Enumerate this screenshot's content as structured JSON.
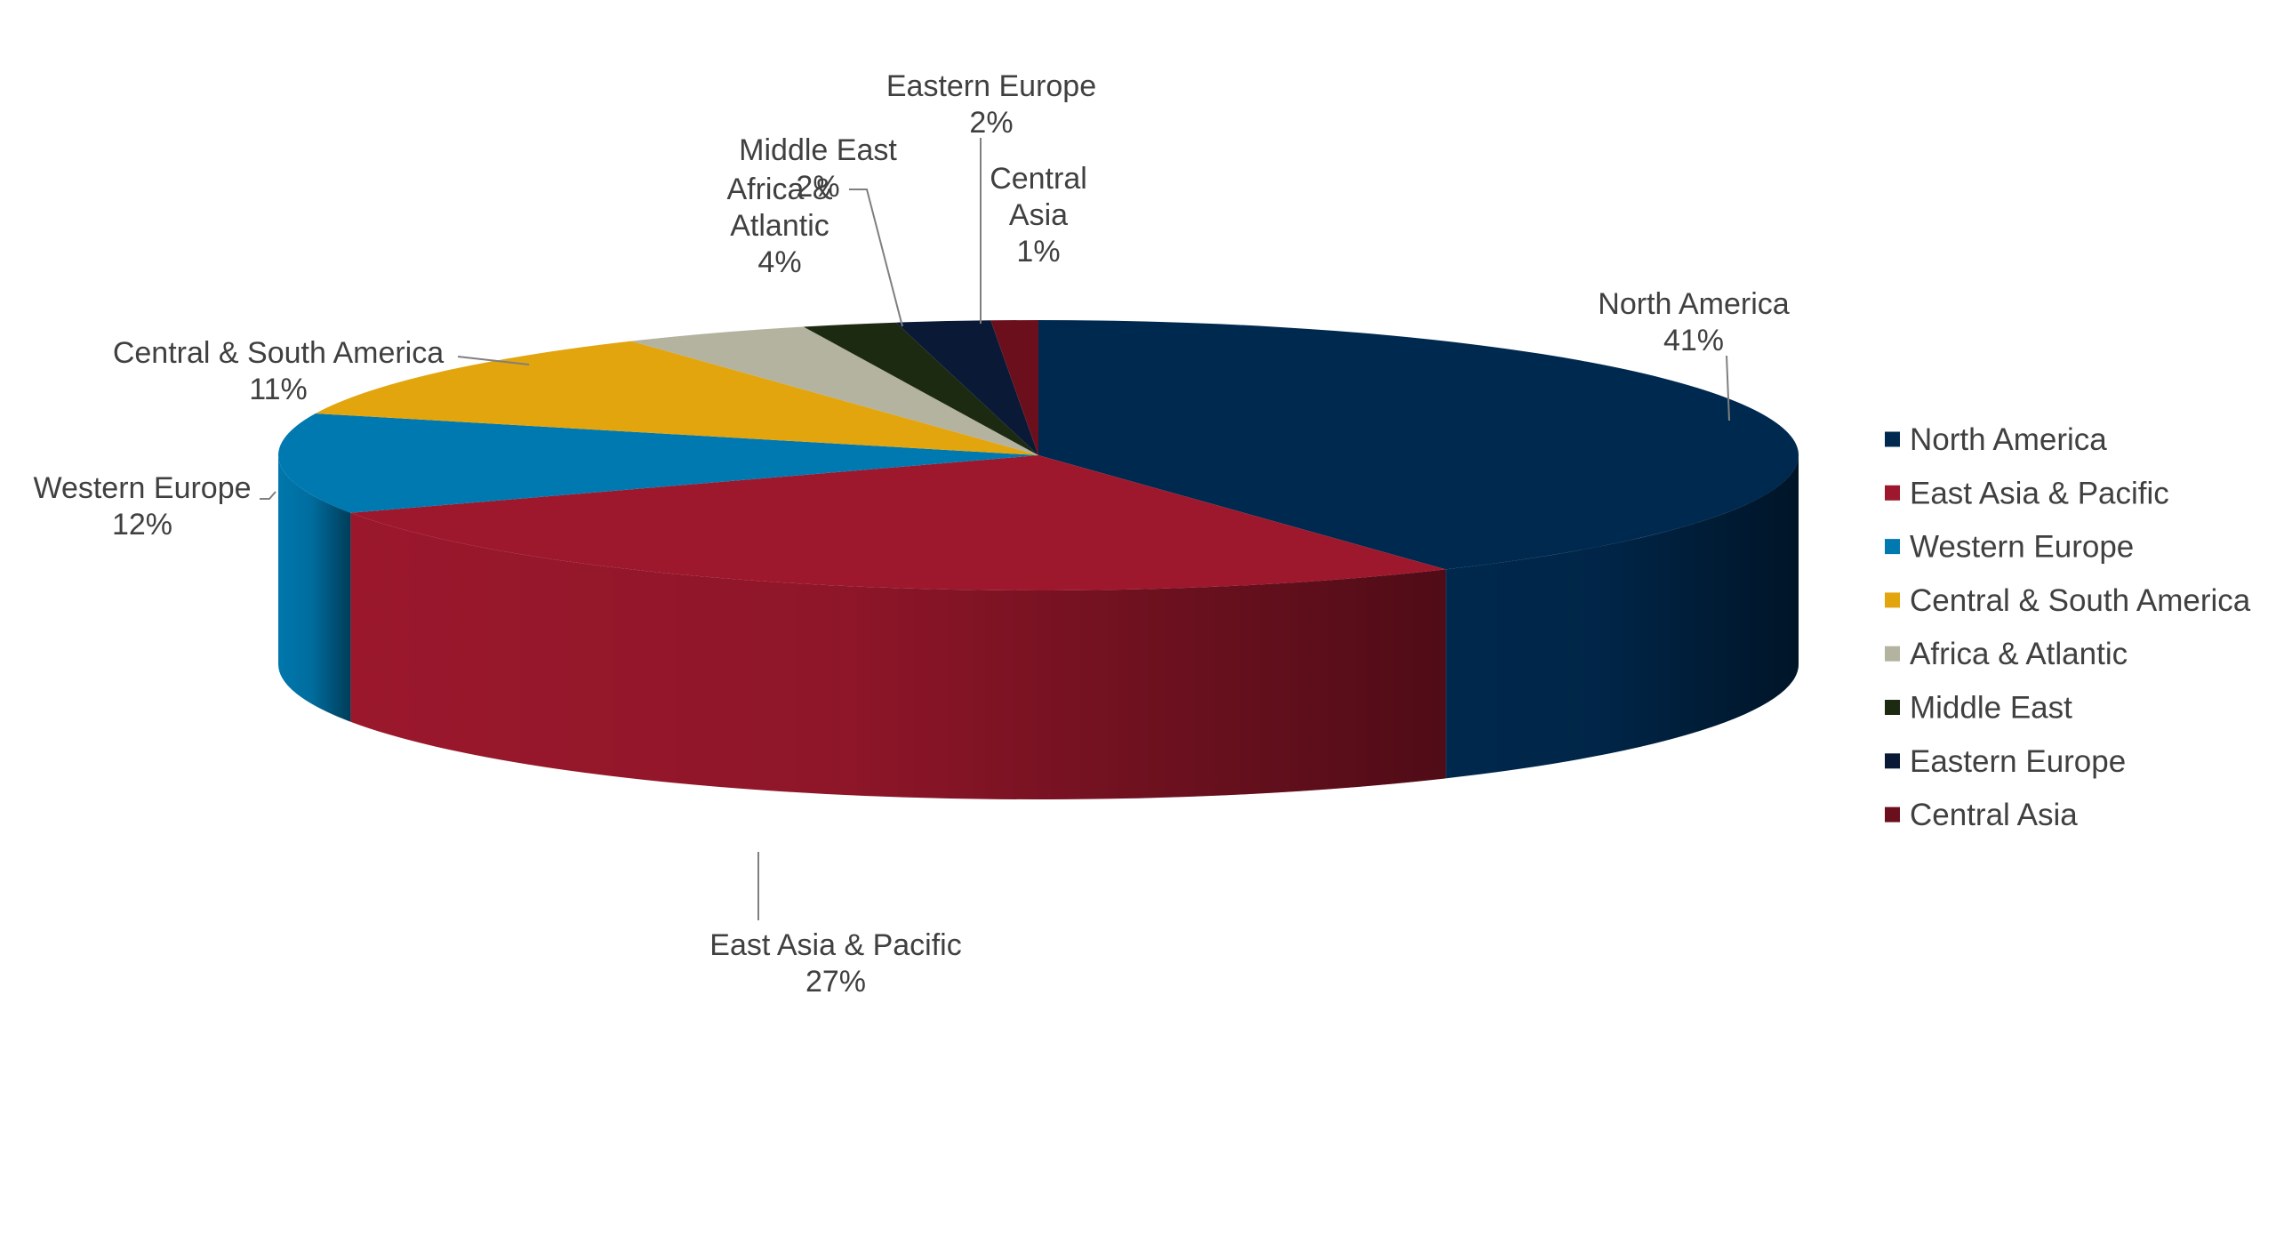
{
  "chart_data": {
    "type": "pie",
    "style": "3d",
    "legend_position": "right",
    "slices": [
      {
        "label": "North America",
        "value": 41,
        "value_label": "41%",
        "color": "#00294f"
      },
      {
        "label": "East Asia & Pacific",
        "value": 27,
        "value_label": "27%",
        "color": "#9e182d"
      },
      {
        "label": "Western Europe",
        "value": 12,
        "value_label": "12%",
        "color": "#0079b0"
      },
      {
        "label": "Central & South America",
        "value": 11,
        "value_label": "11%",
        "color": "#e2a50d"
      },
      {
        "label": "Africa & Atlantic",
        "value": 4,
        "value_label": "4%",
        "color": "#b3b3a0"
      },
      {
        "label": "Middle East",
        "value": 2,
        "value_label": "2%",
        "color": "#1d2a12"
      },
      {
        "label": "Eastern Europe",
        "value": 2,
        "value_label": "2%",
        "color": "#0a1a36"
      },
      {
        "label": "Central Asia",
        "value": 1,
        "value_label": "1%",
        "color": "#6c0f1d"
      }
    ]
  }
}
